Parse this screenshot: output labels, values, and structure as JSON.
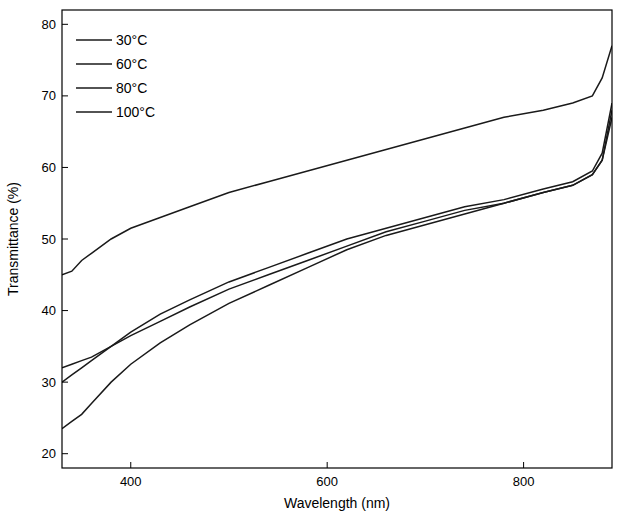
{
  "chart_data": {
    "type": "line",
    "x_label": "Wavelength (nm)",
    "y_label": "Transmittance (%)",
    "x": [
      330,
      340,
      350,
      360,
      380,
      400,
      430,
      460,
      500,
      540,
      580,
      620,
      660,
      700,
      740,
      780,
      820,
      850,
      870,
      880,
      890
    ],
    "series": [
      {
        "name": "30°C",
        "color": "#1a1a1a",
        "values": [
          23.5,
          24.5,
          25.5,
          27,
          30,
          32.5,
          35.5,
          38,
          41,
          43.5,
          46,
          48.5,
          50.5,
          52,
          53.5,
          55,
          56.5,
          57.5,
          59,
          61,
          68
        ]
      },
      {
        "name": "60°C",
        "color": "#1a1a1a",
        "values": [
          32,
          32.5,
          33,
          33.5,
          35,
          36.5,
          38.5,
          40.5,
          43,
          45,
          47,
          49,
          51,
          52.5,
          54,
          55,
          56.5,
          57.5,
          59,
          61,
          67
        ]
      },
      {
        "name": "80°C",
        "color": "#1a1a1a",
        "values": [
          30,
          31,
          32,
          33,
          35,
          37,
          39.5,
          41.5,
          44,
          46,
          48,
          50,
          51.5,
          53,
          54.5,
          55.5,
          57,
          58,
          59.5,
          62,
          69
        ]
      },
      {
        "name": "100°C",
        "color": "#1a1a1a",
        "values": [
          45,
          45.5,
          47,
          48,
          50,
          51.5,
          53,
          54.5,
          56.5,
          58,
          59.5,
          61,
          62.5,
          64,
          65.5,
          67,
          68,
          69,
          70,
          72.5,
          77
        ]
      }
    ],
    "xlim": [
      330,
      890
    ],
    "ylim": [
      18,
      82
    ],
    "xticks": [
      400,
      600,
      800
    ],
    "yticks": [
      20,
      30,
      40,
      50,
      60,
      70,
      80
    ],
    "legend": "upper left",
    "grid": false
  }
}
